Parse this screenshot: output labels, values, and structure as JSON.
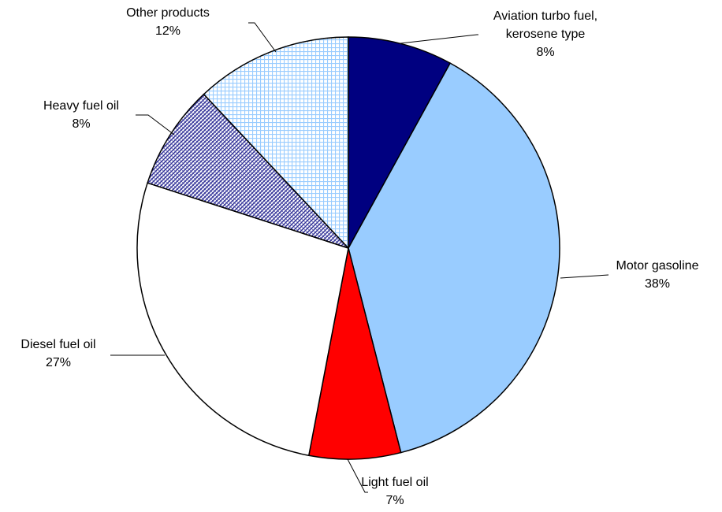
{
  "chart_data": {
    "type": "pie",
    "title": "",
    "start_angle_deg": 0,
    "direction": "clockwise",
    "slices": [
      {
        "name": "Aviation turbo fuel, kerosene type",
        "label_lines": [
          "Aviation turbo fuel,",
          "kerosene type"
        ],
        "value": 8,
        "value_label": "8%",
        "color": "#000080",
        "pattern": "solid"
      },
      {
        "name": "Motor gasoline",
        "label_lines": [
          "Motor gasoline"
        ],
        "value": 38,
        "value_label": "38%",
        "color": "#99CCFF",
        "pattern": "solid"
      },
      {
        "name": "Light fuel oil",
        "label_lines": [
          "Light fuel oil"
        ],
        "value": 7,
        "value_label": "7%",
        "color": "#FF0000",
        "pattern": "solid"
      },
      {
        "name": "Diesel fuel oil",
        "label_lines": [
          "Diesel fuel oil"
        ],
        "value": 27,
        "value_label": "27%",
        "color": "#FFFFFF",
        "pattern": "solid"
      },
      {
        "name": "Heavy fuel oil",
        "label_lines": [
          "Heavy fuel oil"
        ],
        "value": 8,
        "value_label": "8%",
        "color": "#333399",
        "pattern": "diagonal-hatch"
      },
      {
        "name": "Other products",
        "label_lines": [
          "Other products"
        ],
        "value": 12,
        "value_label": "12%",
        "color": "#99CCFF",
        "pattern": "grid"
      }
    ]
  }
}
